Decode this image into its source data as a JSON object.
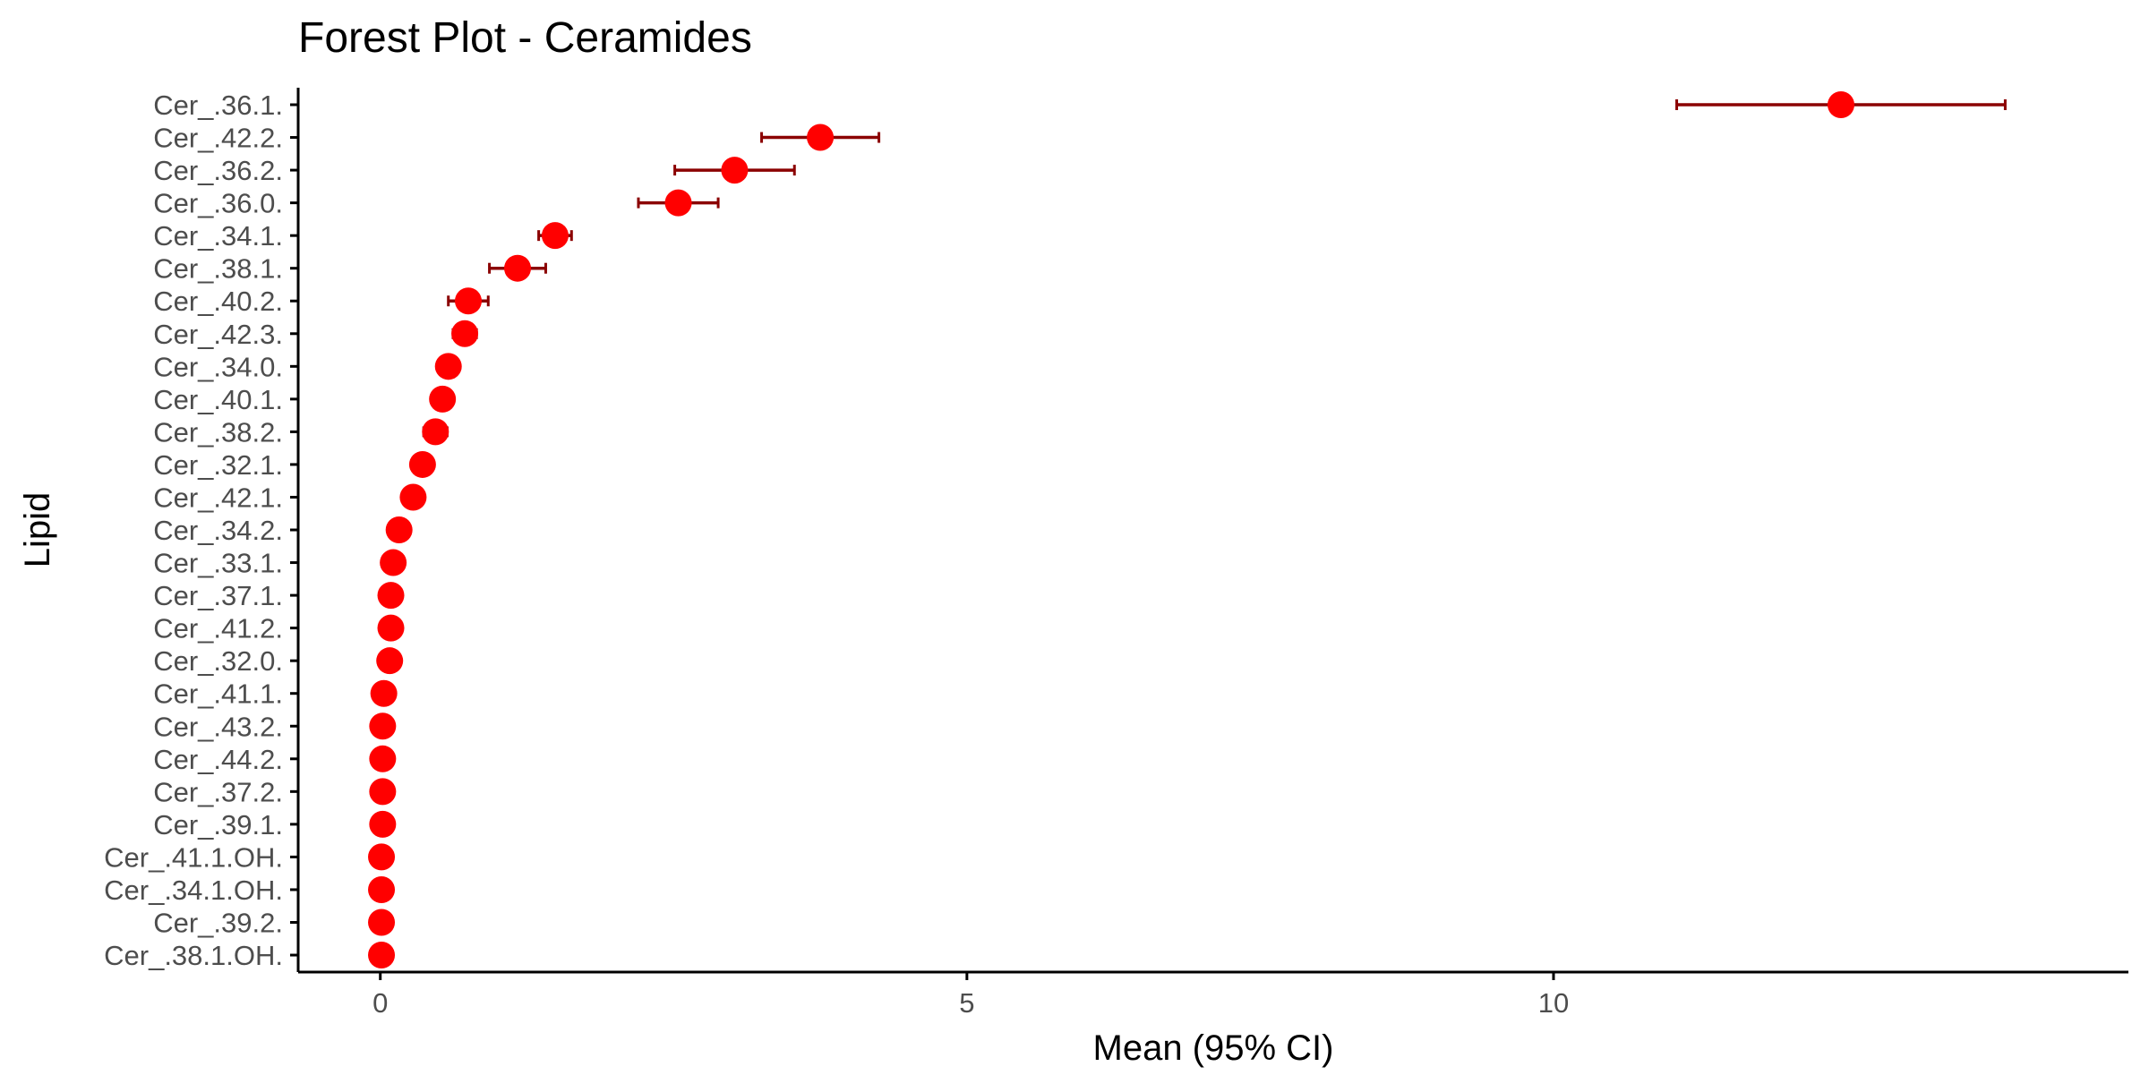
{
  "colors": {
    "point": "#ff0000",
    "errorbar": "#8b0000",
    "axis": "#000000",
    "tick_label": "#4d4d4d",
    "background": "#ffffff"
  },
  "chart_data": {
    "type": "scatter",
    "subtype": "forest-plot",
    "title": "Forest Plot - Ceramides",
    "xlabel": "Mean (95% CI)",
    "ylabel": "Lipid",
    "xlim": [
      -0.7,
      14.9
    ],
    "xticks": [
      0,
      5,
      10
    ],
    "grid": false,
    "legend": "none",
    "points": [
      {
        "lipid": "Cer_.36.1.",
        "mean": 12.45,
        "lower": 11.05,
        "upper": 13.85
      },
      {
        "lipid": "Cer_.42.2.",
        "mean": 3.75,
        "lower": 3.25,
        "upper": 4.25
      },
      {
        "lipid": "Cer_.36.2.",
        "mean": 3.02,
        "lower": 2.51,
        "upper": 3.53
      },
      {
        "lipid": "Cer_.36.0.",
        "mean": 2.54,
        "lower": 2.2,
        "upper": 2.88
      },
      {
        "lipid": "Cer_.34.1.",
        "mean": 1.49,
        "lower": 1.35,
        "upper": 1.63
      },
      {
        "lipid": "Cer_.38.1.",
        "mean": 1.17,
        "lower": 0.93,
        "upper": 1.41
      },
      {
        "lipid": "Cer_.40.2.",
        "mean": 0.75,
        "lower": 0.58,
        "upper": 0.92
      },
      {
        "lipid": "Cer_.42.3.",
        "mean": 0.72,
        "lower": 0.62,
        "upper": 0.82
      },
      {
        "lipid": "Cer_.34.0.",
        "mean": 0.58,
        "lower": 0.5,
        "upper": 0.66
      },
      {
        "lipid": "Cer_.40.1.",
        "mean": 0.53,
        "lower": 0.45,
        "upper": 0.61
      },
      {
        "lipid": "Cer_.38.2.",
        "mean": 0.47,
        "lower": 0.37,
        "upper": 0.57
      },
      {
        "lipid": "Cer_.32.1.",
        "mean": 0.36,
        "lower": 0.28,
        "upper": 0.44
      },
      {
        "lipid": "Cer_.42.1.",
        "mean": 0.28,
        "lower": 0.21,
        "upper": 0.35
      },
      {
        "lipid": "Cer_.34.2.",
        "mean": 0.16,
        "lower": 0.12,
        "upper": 0.2
      },
      {
        "lipid": "Cer_.33.1.",
        "mean": 0.11,
        "lower": 0.09,
        "upper": 0.13
      },
      {
        "lipid": "Cer_.37.1.",
        "mean": 0.09,
        "lower": 0.07,
        "upper": 0.11
      },
      {
        "lipid": "Cer_.41.2.",
        "mean": 0.09,
        "lower": 0.07,
        "upper": 0.11
      },
      {
        "lipid": "Cer_.32.0.",
        "mean": 0.08,
        "lower": 0.06,
        "upper": 0.1
      },
      {
        "lipid": "Cer_.41.1.",
        "mean": 0.03,
        "lower": 0.02,
        "upper": 0.04
      },
      {
        "lipid": "Cer_.43.2.",
        "mean": 0.02,
        "lower": 0.01,
        "upper": 0.03
      },
      {
        "lipid": "Cer_.44.2.",
        "mean": 0.02,
        "lower": 0.01,
        "upper": 0.03
      },
      {
        "lipid": "Cer_.37.2.",
        "mean": 0.02,
        "lower": 0.01,
        "upper": 0.03
      },
      {
        "lipid": "Cer_.39.1.",
        "mean": 0.02,
        "lower": 0.01,
        "upper": 0.03
      },
      {
        "lipid": "Cer_.41.1.OH.",
        "mean": 0.01,
        "lower": 0.0,
        "upper": 0.02
      },
      {
        "lipid": "Cer_.34.1.OH.",
        "mean": 0.01,
        "lower": 0.0,
        "upper": 0.02
      },
      {
        "lipid": "Cer_.39.2.",
        "mean": 0.01,
        "lower": 0.0,
        "upper": 0.02
      },
      {
        "lipid": "Cer_.38.1.OH.",
        "mean": 0.01,
        "lower": 0.0,
        "upper": 0.02
      }
    ]
  }
}
